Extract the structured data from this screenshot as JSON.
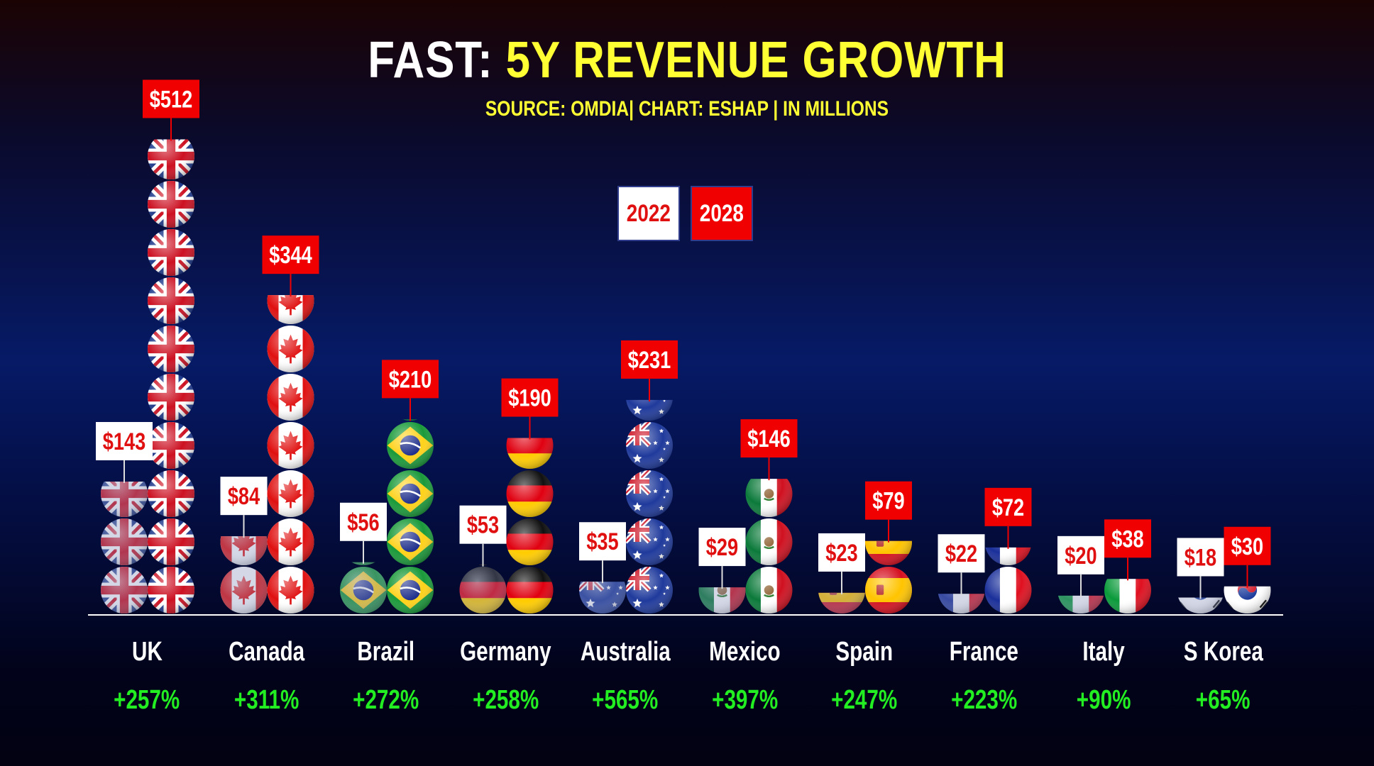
{
  "header": {
    "title_prefix": "FAST:",
    "title_main": "5Y REVENUE GROWTH",
    "subtitle": "SOURCE: OMDIA| CHART: ESHAP | IN MILLIONS"
  },
  "colors": {
    "series_2022": "#ffffff",
    "series_2022_text": "#e01010",
    "series_2028": "#f00000",
    "series_2028_text": "#ffffff",
    "growth_text": "#22ee22",
    "title_accent": "#ffff33"
  },
  "chart_data": {
    "type": "bar",
    "title": "5Y REVENUE GROWTH",
    "xlabel": "",
    "ylabel": "",
    "legend_placement": "top-center",
    "grid": false,
    "unit": "$M",
    "ylim": [
      0,
      512
    ],
    "categories": [
      "UK",
      "Canada",
      "Brazil",
      "Germany",
      "Australia",
      "Mexico",
      "Spain",
      "France",
      "Italy",
      "S Korea"
    ],
    "series": [
      {
        "name": "2022",
        "values": [
          143,
          84,
          56,
          53,
          35,
          29,
          23,
          22,
          20,
          18
        ],
        "labels": [
          "$143",
          "$84",
          "$56",
          "$53",
          "$35",
          "$29",
          "$23",
          "$22",
          "$20",
          "$18"
        ]
      },
      {
        "name": "2028",
        "values": [
          512,
          344,
          210,
          190,
          231,
          146,
          79,
          72,
          38,
          30
        ],
        "labels": [
          "$512",
          "$344",
          "$210",
          "$190",
          "$231",
          "$146",
          "$79",
          "$72",
          "$38",
          "$30"
        ]
      }
    ],
    "growth": [
      "+257%",
      "+311%",
      "+272%",
      "+258%",
      "+565%",
      "+397%",
      "+247%",
      "+223%",
      "+90%",
      "+65%"
    ],
    "flag_icons": [
      "uk-flag-icon",
      "canada-flag-icon",
      "brazil-flag-icon",
      "germany-flag-icon",
      "australia-flag-icon",
      "mexico-flag-icon",
      "spain-flag-icon",
      "france-flag-icon",
      "italy-flag-icon",
      "south-korea-flag-icon"
    ]
  }
}
